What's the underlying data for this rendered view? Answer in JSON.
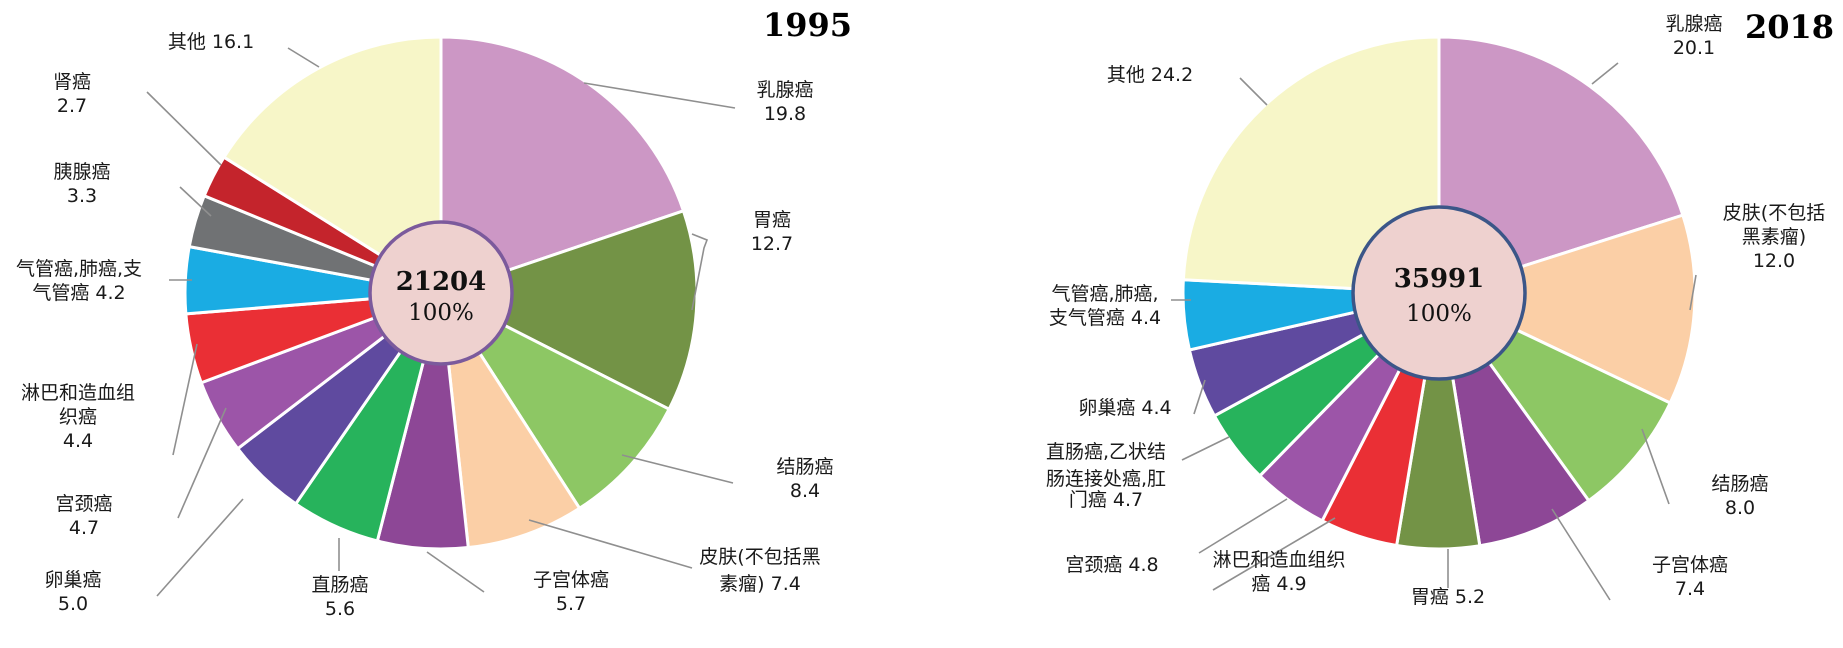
{
  "chart_data": [
    {
      "type": "pie",
      "title": "1995",
      "center_total": "21204",
      "center_percent": "100%",
      "slices": [
        {
          "name": "乳腺癌",
          "value": 19.8,
          "color": "#cc97c5"
        },
        {
          "name": "胃癌",
          "value": 12.7,
          "color": "#739346"
        },
        {
          "name": "结肠癌",
          "value": 8.4,
          "color": "#8dc764"
        },
        {
          "name": "皮肤(不包括黑素瘤)",
          "value": 7.4,
          "color": "#fbcfa6"
        },
        {
          "name": "子宫体癌",
          "value": 5.7,
          "color": "#8d4796"
        },
        {
          "name": "直肠癌",
          "value": 5.6,
          "color": "#27b35c"
        },
        {
          "name": "卵巢癌",
          "value": 5.0,
          "color": "#5f4a9f"
        },
        {
          "name": "宫颈癌",
          "value": 4.7,
          "color": "#9c55a8"
        },
        {
          "name": "淋巴和造血组织癌",
          "value": 4.4,
          "color": "#ea2f35"
        },
        {
          "name": "气管癌,肺癌,支气管癌",
          "value": 4.2,
          "color": "#1aace3"
        },
        {
          "name": "胰腺癌",
          "value": 3.3,
          "color": "#707274"
        },
        {
          "name": "肾癌",
          "value": 2.7,
          "color": "#c4242c"
        },
        {
          "name": "其他",
          "value": 16.1,
          "color": "#f7f6c8"
        }
      ],
      "labels": [
        {
          "lines": [
            "乳腺癌",
            "19.8"
          ]
        },
        {
          "lines": [
            "胃癌",
            "12.7"
          ]
        },
        {
          "lines": [
            "结肠癌",
            "8.4"
          ]
        },
        {
          "lines": [
            "皮肤(不包括黑",
            "素瘤) 7.4"
          ]
        },
        {
          "lines": [
            "子宫体癌",
            "5.7"
          ]
        },
        {
          "lines": [
            "直肠癌",
            "5.6"
          ]
        },
        {
          "lines": [
            "卵巢癌",
            "5.0"
          ]
        },
        {
          "lines": [
            "宫颈癌",
            "4.7"
          ]
        },
        {
          "lines": [
            "淋巴和造血组",
            "织癌",
            "4.4"
          ]
        },
        {
          "lines": [
            "气管癌,肺癌,支",
            "气管癌 4.2"
          ]
        },
        {
          "lines": [
            "胰腺癌",
            "3.3"
          ]
        },
        {
          "lines": [
            "肾癌",
            "2.7"
          ]
        },
        {
          "lines": [
            "其他 16.1"
          ]
        }
      ]
    },
    {
      "type": "pie",
      "title": "2018",
      "center_total": "35991",
      "center_percent": "100%",
      "slices": [
        {
          "name": "乳腺癌",
          "value": 20.1,
          "color": "#cc97c5"
        },
        {
          "name": "皮肤(不包括黑素瘤)",
          "value": 12.0,
          "color": "#fbcfa6"
        },
        {
          "name": "结肠癌",
          "value": 8.0,
          "color": "#8dc764"
        },
        {
          "name": "子宫体癌",
          "value": 7.4,
          "color": "#8d4796"
        },
        {
          "name": "胃癌",
          "value": 5.2,
          "color": "#739346"
        },
        {
          "name": "淋巴和造血组织癌",
          "value": 4.9,
          "color": "#ea2f35"
        },
        {
          "name": "宫颈癌",
          "value": 4.8,
          "color": "#9c55a8"
        },
        {
          "name": "直肠癌,乙状结肠连接处癌,肛门癌",
          "value": 4.7,
          "color": "#27b35c"
        },
        {
          "name": "卵巢癌",
          "value": 4.4,
          "color": "#5f4a9f"
        },
        {
          "name": "气管癌,肺癌,支气管癌",
          "value": 4.4,
          "color": "#1aace3"
        },
        {
          "name": "其他",
          "value": 24.2,
          "color": "#f7f6c8"
        }
      ],
      "labels": [
        {
          "lines": [
            "乳腺癌",
            "20.1"
          ]
        },
        {
          "lines": [
            "皮肤(不包括",
            "黑素瘤)",
            "12.0"
          ]
        },
        {
          "lines": [
            "结肠癌",
            "8.0"
          ]
        },
        {
          "lines": [
            "子宫体癌",
            "7.4"
          ]
        },
        {
          "lines": [
            "胃癌 5.2"
          ]
        },
        {
          "lines": [
            "淋巴和造血组织",
            "癌 4.9"
          ]
        },
        {
          "lines": [
            "宫颈癌 4.8"
          ]
        },
        {
          "lines": [
            "直肠癌,乙状结",
            "肠连接处癌,肛",
            "门癌 4.7"
          ]
        },
        {
          "lines": [
            "卵巢癌 4.4"
          ]
        },
        {
          "lines": [
            "气管癌,肺癌,",
            "支气管癌 4.4"
          ]
        },
        {
          "lines": [
            "其他 24.2"
          ]
        }
      ]
    }
  ]
}
